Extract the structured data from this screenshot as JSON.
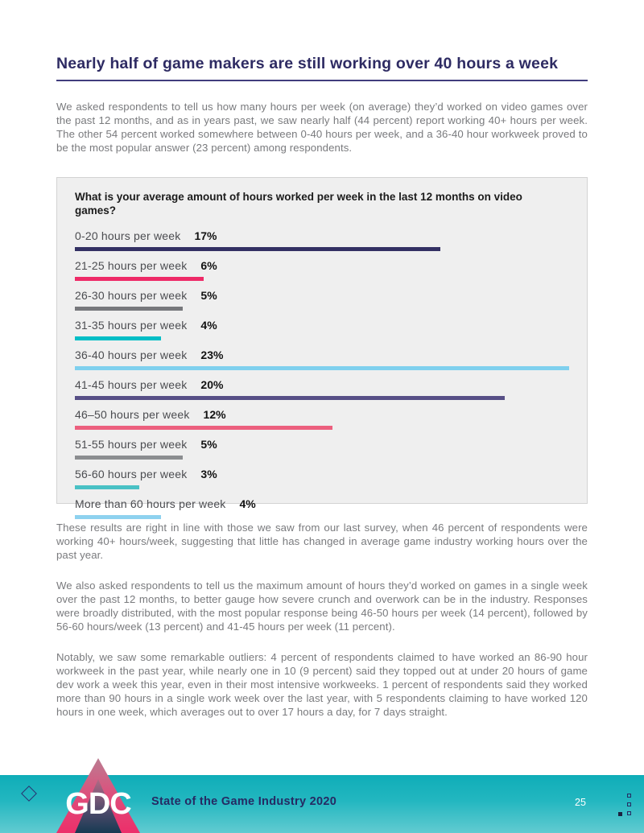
{
  "header": {
    "title": "Nearly half of game makers are still working over 40 hours a week"
  },
  "paragraphs": [
    "We asked respondents to tell us how many hours per week (on average) they’d worked on video games over the past 12 months, and as in years past, we saw nearly half (44 percent) report working 40+ hours per week. The other 54 percent worked somewhere between 0-40 hours per week, and a 36-40 hour workweek proved to be the most popular answer (23 percent) among respondents.",
    "These results are right in line with those we saw from our last survey, when 46 percent of respondents were working 40+ hours/week, suggesting that little has changed in average game industry working hours over the past year.",
    "We also asked respondents to tell us the maximum amount of hours they’d worked on games in a single week over the past 12 months, to better gauge how severe crunch and overwork can be in the industry. Responses were broadly distributed, with the most popular response being 46-50 hours per week (14 percent), followed by 56-60 hours/week (13 percent) and 41-45 hours per week (11 percent).",
    "Notably, we saw some remarkable outliers: 4 percent of respondents claimed to have worked an 86-90 hour workweek in the past year, while nearly one in 10 (9 percent) said they topped out at under 20 hours of game dev work a week this year, even in their most intensive workweeks. 1 percent of respondents said they worked more than 90 hours in a single work week over the last year, with 5 respondents claiming to have worked 120 hours in one week, which averages out to over 17 hours a day, for 7 days straight."
  ],
  "chart_data": {
    "type": "bar",
    "orientation": "horizontal",
    "title": "What is your average amount of hours worked per week in the last 12 months on video games?",
    "categories": [
      "0-20 hours per week",
      "21-25 hours per week",
      "26-30 hours per week",
      "31-35 hours per week",
      "36-40 hours per week",
      "41-45 hours per week",
      "46–50 hours per week",
      "51-55 hours per week",
      "56-60 hours per week",
      "More than 60 hours per week"
    ],
    "values": [
      17,
      6,
      5,
      4,
      23,
      20,
      12,
      5,
      3,
      4
    ],
    "value_labels": [
      "17%",
      "6%",
      "5%",
      "4%",
      "23%",
      "20%",
      "12%",
      "5%",
      "3%",
      "4%"
    ],
    "bar_colors": [
      "#333063",
      "#ee2a67",
      "#77787c",
      "#00bec6",
      "#7fd0ee",
      "#574f86",
      "#ec5f7e",
      "#8b8d90",
      "#49c1c5",
      "#8ed2ef"
    ],
    "unit": "percent",
    "xlim": [
      0,
      23
    ],
    "grid": false,
    "legend": false
  },
  "footer": {
    "brand": "GDC",
    "title": "State of the Game Industry 2020",
    "page_number": "25",
    "colors": {
      "band_top": "#0fadb8",
      "band_bottom": "#62cbd1",
      "navy": "#262a63",
      "logo_pink": "#ec2f6a"
    }
  }
}
